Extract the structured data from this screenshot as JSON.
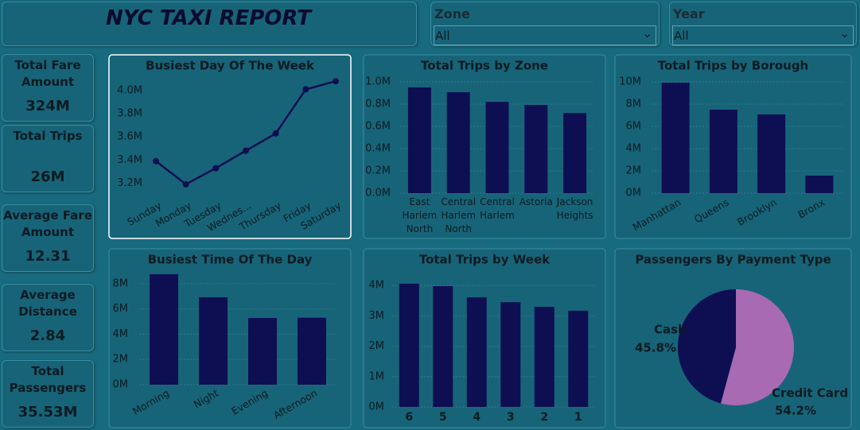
{
  "header": {
    "title": "NYC TAXI REPORT"
  },
  "slicers": [
    {
      "label": "Zone",
      "value": "All"
    },
    {
      "label": "Year",
      "value": "All"
    }
  ],
  "kpis": [
    {
      "label": "Total Fare Amount",
      "value": "324M"
    },
    {
      "label": "Total Trips",
      "value": "26M"
    },
    {
      "label": "Average Fare Amount",
      "value": "12.31"
    },
    {
      "label": "Average Distance",
      "value": "2.84"
    },
    {
      "label": "Total Passengers",
      "value": "35.53M"
    }
  ],
  "chart_data": [
    {
      "type": "line",
      "title": "Busiest Day Of The Week",
      "categories": [
        "Sunday",
        "Monday",
        "Tuesday",
        "Wednes...",
        "Thursday",
        "Friday",
        "Saturday"
      ],
      "values": [
        3390000,
        3190000,
        3330000,
        3480000,
        3630000,
        4010000,
        4080000
      ],
      "color": "#0e0e52",
      "ylim": [
        3100000,
        4150000
      ],
      "yticks": [
        {
          "value": 3200000,
          "label": "3.2M"
        },
        {
          "value": 3400000,
          "label": "3.4M"
        },
        {
          "value": 3600000,
          "label": "3.6M"
        },
        {
          "value": 3800000,
          "label": "3.8M"
        },
        {
          "value": 4000000,
          "label": "4.0M"
        }
      ]
    },
    {
      "type": "bar",
      "title": "Total Trips by Zone",
      "categories": [
        "East Harlem North",
        "Central Harlem North",
        "Central Harlem",
        "Astoria",
        "Jackson Heights"
      ],
      "values": [
        950000,
        907000,
        820000,
        793000,
        720000
      ],
      "color": "#0e0e52",
      "ylim": [
        0,
        1000000
      ],
      "yticks": [
        {
          "value": 0,
          "label": "0.0M"
        },
        {
          "value": 200000,
          "label": "0.2M"
        },
        {
          "value": 400000,
          "label": "0.4M"
        },
        {
          "value": 600000,
          "label": "0.6M"
        },
        {
          "value": 800000,
          "label": "0.8M"
        },
        {
          "value": 1000000,
          "label": "1.0M"
        }
      ]
    },
    {
      "type": "bar",
      "title": "Total Trips by Borough",
      "categories": [
        "Manhattan",
        "Queens",
        "Brooklyn",
        "Bronx"
      ],
      "values": [
        9930000,
        7500000,
        7070000,
        1570000
      ],
      "color": "#0e0e52",
      "ylim": [
        0,
        10000000
      ],
      "yticks": [
        {
          "value": 0,
          "label": "0M"
        },
        {
          "value": 2000000,
          "label": "2M"
        },
        {
          "value": 4000000,
          "label": "4M"
        },
        {
          "value": 6000000,
          "label": "6M"
        },
        {
          "value": 8000000,
          "label": "8M"
        },
        {
          "value": 10000000,
          "label": "10M"
        }
      ]
    },
    {
      "type": "bar",
      "title": "Busiest Time Of The Day",
      "categories": [
        "Morning",
        "Night",
        "Evening",
        "Afternoon"
      ],
      "values": [
        8750000,
        6920000,
        5280000,
        5300000
      ],
      "color": "#0e0e52",
      "ylim": [
        0,
        9000000
      ],
      "yticks": [
        {
          "value": 0,
          "label": "0M"
        },
        {
          "value": 2000000,
          "label": "2M"
        },
        {
          "value": 4000000,
          "label": "4M"
        },
        {
          "value": 6000000,
          "label": "6M"
        },
        {
          "value": 8000000,
          "label": "8M"
        }
      ]
    },
    {
      "type": "bar",
      "title": "Total Trips by Week",
      "categories": [
        "6",
        "5",
        "4",
        "3",
        "2",
        "1"
      ],
      "values": [
        4060000,
        3980000,
        3610000,
        3450000,
        3300000,
        3170000
      ],
      "color": "#0e0e52",
      "ylim": [
        0,
        4200000
      ],
      "yticks": [
        {
          "value": 0,
          "label": "0M"
        },
        {
          "value": 1000000,
          "label": "1M"
        },
        {
          "value": 2000000,
          "label": "2M"
        },
        {
          "value": 3000000,
          "label": "3M"
        },
        {
          "value": 4000000,
          "label": "4M"
        }
      ]
    },
    {
      "type": "pie",
      "title": "Passengers By Payment Type",
      "categories": [
        "Cash",
        "Credit Card"
      ],
      "values": [
        45.8,
        54.2
      ],
      "value_labels": [
        "45.8%",
        "54.2%"
      ],
      "colors": [
        "#0e0e52",
        "#a86ab3"
      ]
    }
  ]
}
